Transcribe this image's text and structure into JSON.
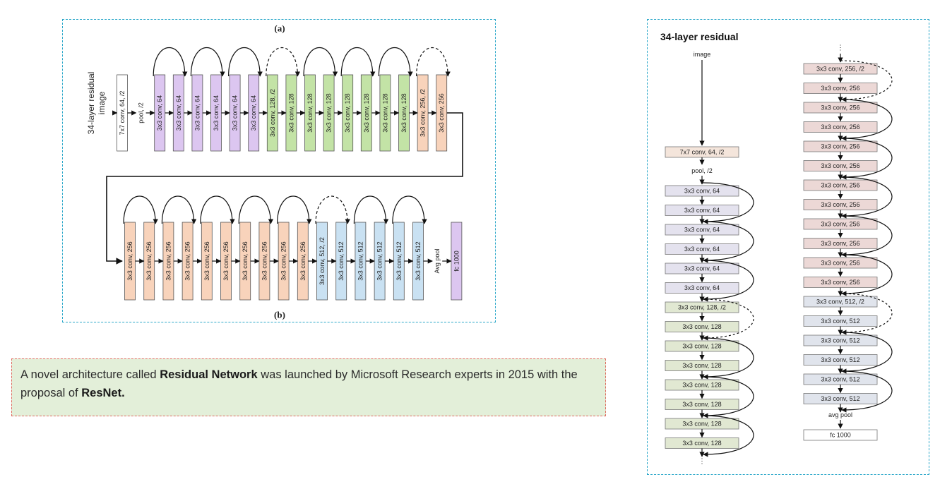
{
  "figure_a": {
    "label_a": "(a)",
    "label_b": "(b)",
    "title_line1": "34-layer residual",
    "title_line2": "image",
    "row1": [
      {
        "text": "7x7 conv, 64, /2",
        "kind": "white"
      },
      {
        "text": "pool, /2",
        "kind": "text"
      },
      {
        "text": "3x3 conv, 64",
        "kind": "purple"
      },
      {
        "text": "3x3 conv, 64",
        "kind": "purple"
      },
      {
        "text": "3x3 conv, 64",
        "kind": "purple"
      },
      {
        "text": "3x3 conv, 64",
        "kind": "purple"
      },
      {
        "text": "3x3 conv, 64",
        "kind": "purple"
      },
      {
        "text": "3x3 conv, 64",
        "kind": "purple"
      },
      {
        "text": "3x3 conv, 128, /2",
        "kind": "green"
      },
      {
        "text": "3x3 conv, 128",
        "kind": "green"
      },
      {
        "text": "3x3 conv, 128",
        "kind": "green"
      },
      {
        "text": "3x3 conv, 128",
        "kind": "green"
      },
      {
        "text": "3x3 conv, 128",
        "kind": "green"
      },
      {
        "text": "3x3 conv, 128",
        "kind": "green"
      },
      {
        "text": "3x3 conv, 128",
        "kind": "green"
      },
      {
        "text": "3x3 conv, 128",
        "kind": "green"
      },
      {
        "text": "3x3 conv, 256, /2",
        "kind": "peach"
      },
      {
        "text": "3x3 conv, 256",
        "kind": "peach"
      }
    ],
    "row2": [
      {
        "text": "3x3 conv, 256",
        "kind": "peach"
      },
      {
        "text": "3x3 conv, 256",
        "kind": "peach"
      },
      {
        "text": "3x3 conv, 256",
        "kind": "peach"
      },
      {
        "text": "3x3 conv, 256",
        "kind": "peach"
      },
      {
        "text": "3x3 conv, 256",
        "kind": "peach"
      },
      {
        "text": "3x3 conv, 256",
        "kind": "peach"
      },
      {
        "text": "3x3 conv, 256",
        "kind": "peach"
      },
      {
        "text": "3x3 conv, 256",
        "kind": "peach"
      },
      {
        "text": "3x3 conv, 256",
        "kind": "peach"
      },
      {
        "text": "3x3 conv, 256",
        "kind": "peach"
      },
      {
        "text": "3x3 conv, 512, /2",
        "kind": "blue"
      },
      {
        "text": "3x3 conv, 512",
        "kind": "blue"
      },
      {
        "text": "3x3 conv, 512",
        "kind": "blue"
      },
      {
        "text": "3x3 conv, 512",
        "kind": "blue"
      },
      {
        "text": "3x3 conv, 512",
        "kind": "blue"
      },
      {
        "text": "3x3 conv, 512",
        "kind": "blue"
      },
      {
        "text": "Avg pool",
        "kind": "text"
      },
      {
        "text": "fc 1000",
        "kind": "purple"
      }
    ]
  },
  "figure_r": {
    "title": "34-layer residual",
    "input_label": "image",
    "col1_first": "7x7 conv, 64, /2",
    "col1_pool": "pool, /2",
    "col1": [
      {
        "text": "3x3 conv, 64",
        "kind": "lav"
      },
      {
        "text": "3x3 conv, 64",
        "kind": "lav"
      },
      {
        "text": "3x3 conv, 64",
        "kind": "lav"
      },
      {
        "text": "3x3 conv, 64",
        "kind": "lav"
      },
      {
        "text": "3x3 conv, 64",
        "kind": "lav"
      },
      {
        "text": "3x3 conv, 64",
        "kind": "lav"
      },
      {
        "text": "3x3 conv, 128, /2",
        "kind": "sage"
      },
      {
        "text": "3x3 conv, 128",
        "kind": "sage"
      },
      {
        "text": "3x3 conv, 128",
        "kind": "sage"
      },
      {
        "text": "3x3 conv, 128",
        "kind": "sage"
      },
      {
        "text": "3x3 conv, 128",
        "kind": "sage"
      },
      {
        "text": "3x3 conv, 128",
        "kind": "sage"
      },
      {
        "text": "3x3 conv, 128",
        "kind": "sage"
      },
      {
        "text": "3x3 conv, 128",
        "kind": "sage"
      }
    ],
    "col2": [
      {
        "text": "3x3 conv, 256, /2",
        "kind": "rose"
      },
      {
        "text": "3x3 conv, 256",
        "kind": "rose"
      },
      {
        "text": "3x3 conv, 256",
        "kind": "rose"
      },
      {
        "text": "3x3 conv, 256",
        "kind": "rose"
      },
      {
        "text": "3x3 conv, 256",
        "kind": "rose"
      },
      {
        "text": "3x3 conv, 256",
        "kind": "rose"
      },
      {
        "text": "3x3 conv, 256",
        "kind": "rose"
      },
      {
        "text": "3x3 conv, 256",
        "kind": "rose"
      },
      {
        "text": "3x3 conv, 256",
        "kind": "rose"
      },
      {
        "text": "3x3 conv, 256",
        "kind": "rose"
      },
      {
        "text": "3x3 conv, 256",
        "kind": "rose"
      },
      {
        "text": "3x3 conv, 256",
        "kind": "rose"
      },
      {
        "text": "3x3 conv, 512, /2",
        "kind": "ice"
      },
      {
        "text": "3x3 conv, 512",
        "kind": "ice"
      },
      {
        "text": "3x3 conv, 512",
        "kind": "ice"
      },
      {
        "text": "3x3 conv, 512",
        "kind": "ice"
      },
      {
        "text": "3x3 conv, 512",
        "kind": "ice"
      },
      {
        "text": "3x3 conv, 512",
        "kind": "ice"
      }
    ],
    "col2_avg": "avg pool",
    "col2_fc": "fc 1000",
    "ellipsis": "⋮"
  },
  "note": {
    "t1": "A novel architecture called ",
    "b1": "Residual Network",
    "t2": " was launched by Microsoft Research experts in 2015 with the proposal of ",
    "b2": "ResNet."
  },
  "colors": {
    "white": "#ffffff",
    "purple": "#dcc6f0",
    "green": "#c3e3a6",
    "peach": "#f8d3bb",
    "blue": "#c9e1f2",
    "lav": "#e4e2ee",
    "sage": "#e1e8d2",
    "rose": "#ecd8d6",
    "ice": "#e0e4ec",
    "cream": "#f4e5db",
    "frame": "#2aa7c9",
    "note_border": "#e06a5f",
    "note_bg": "#e3efd9"
  }
}
